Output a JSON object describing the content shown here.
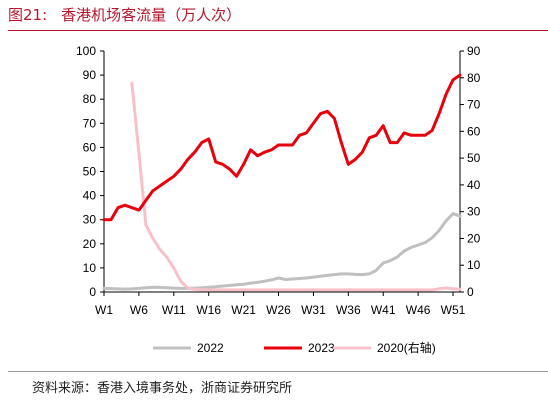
{
  "title": {
    "figure_no": "图21:",
    "text": "香港机场客流量（万人次）"
  },
  "source": "资料来源：香港入境事务处，浙商证券研究所",
  "colors": {
    "title": "#b8152c",
    "s2022": "#c0c0c0",
    "s2023": "#e8000b",
    "s2020": "#f8c0c8",
    "axis": "#000000"
  },
  "chart_data": {
    "type": "line",
    "title": "",
    "xlabel": "",
    "ylabel": "",
    "x_ticks": [
      "W1",
      "W6",
      "W11",
      "W16",
      "W21",
      "W26",
      "W31",
      "W36",
      "W41",
      "W46",
      "W51"
    ],
    "ylim_left": [
      0,
      100
    ],
    "yticks_left": [
      "0",
      "10",
      "20",
      "30",
      "40",
      "50",
      "60",
      "70",
      "80",
      "90",
      "100"
    ],
    "ylim_right": [
      0,
      90
    ],
    "yticks_right": [
      "0",
      "10",
      "20",
      "30",
      "40",
      "50",
      "60",
      "70",
      "80",
      "90"
    ],
    "grid": false,
    "legend_position": "bottom",
    "series": [
      {
        "name": "2022",
        "axis": "left",
        "color": "#c0c0c0",
        "x": [
          1,
          2,
          3,
          4,
          5,
          6,
          7,
          8,
          9,
          10,
          11,
          12,
          13,
          14,
          15,
          16,
          17,
          18,
          19,
          20,
          21,
          22,
          23,
          24,
          25,
          26,
          27,
          28,
          29,
          30,
          31,
          32,
          33,
          34,
          35,
          36,
          37,
          38,
          39,
          40,
          41,
          42,
          43,
          44,
          45,
          46,
          47,
          48,
          49,
          50,
          51,
          52
        ],
        "values": [
          1.5,
          1.4,
          1.3,
          1.2,
          1.3,
          1.5,
          1.8,
          2.0,
          1.9,
          1.8,
          1.6,
          1.5,
          1.5,
          1.6,
          1.8,
          2.0,
          2.2,
          2.5,
          2.7,
          3.0,
          3.2,
          3.7,
          4.0,
          4.5,
          5.0,
          5.8,
          5.2,
          5.4,
          5.6,
          5.8,
          6.2,
          6.5,
          6.9,
          7.2,
          7.5,
          7.5,
          7.3,
          7.2,
          7.5,
          9.0,
          12.0,
          13.0,
          14.5,
          17.0,
          18.5,
          19.5,
          20.5,
          22.5,
          25.5,
          29.5,
          32.5,
          31.5
        ]
      },
      {
        "name": "2023",
        "axis": "left",
        "color": "#e8000b",
        "x": [
          1,
          2,
          3,
          4,
          5,
          6,
          7,
          8,
          9,
          10,
          11,
          12,
          13,
          14,
          15,
          16,
          17,
          18,
          19,
          20,
          21,
          22,
          23,
          24,
          25,
          26,
          27,
          28,
          29,
          30,
          31,
          32,
          33,
          34,
          35,
          36,
          37,
          38,
          39,
          40,
          41,
          42,
          43,
          44,
          45,
          46,
          47,
          48,
          49,
          50,
          51,
          52
        ],
        "values": [
          30,
          30,
          35,
          36,
          35,
          34,
          38,
          42,
          44,
          46,
          48,
          51,
          55,
          58,
          62,
          63.5,
          54,
          53,
          51,
          48,
          53,
          59,
          56.5,
          58,
          59,
          61,
          61,
          61,
          65,
          66,
          70,
          74,
          75,
          72,
          62,
          53,
          55,
          58,
          64,
          65,
          69,
          62,
          62,
          66,
          65,
          65,
          65,
          67,
          74,
          82,
          88,
          90
        ]
      },
      {
        "name": "2020(右轴)",
        "axis": "right",
        "color": "#f8c0c8",
        "x": [
          1,
          2,
          3,
          4,
          5,
          6,
          7,
          8,
          9,
          10,
          11,
          12,
          13,
          14,
          15,
          16,
          17,
          18,
          19,
          20,
          21,
          22,
          23,
          24,
          25,
          26,
          27,
          28,
          29,
          30,
          31,
          32,
          33,
          34,
          35,
          36,
          37,
          38,
          39,
          40,
          41,
          42,
          43,
          44,
          45,
          46,
          47,
          48,
          49,
          50,
          51,
          52
        ],
        "values": [
          null,
          null,
          null,
          null,
          78,
          52,
          25,
          20,
          16,
          13,
          9,
          4,
          1.5,
          1,
          0.8,
          0.8,
          0.8,
          0.8,
          0.8,
          0.8,
          0.8,
          0.8,
          0.8,
          0.8,
          0.8,
          0.8,
          0.8,
          0.8,
          0.8,
          0.8,
          0.8,
          0.8,
          0.8,
          0.8,
          0.8,
          0.8,
          0.8,
          0.8,
          0.8,
          0.8,
          0.8,
          0.8,
          0.8,
          0.8,
          0.8,
          0.8,
          0.8,
          0.8,
          1.2,
          1.5,
          1.2,
          1.0
        ]
      }
    ]
  }
}
